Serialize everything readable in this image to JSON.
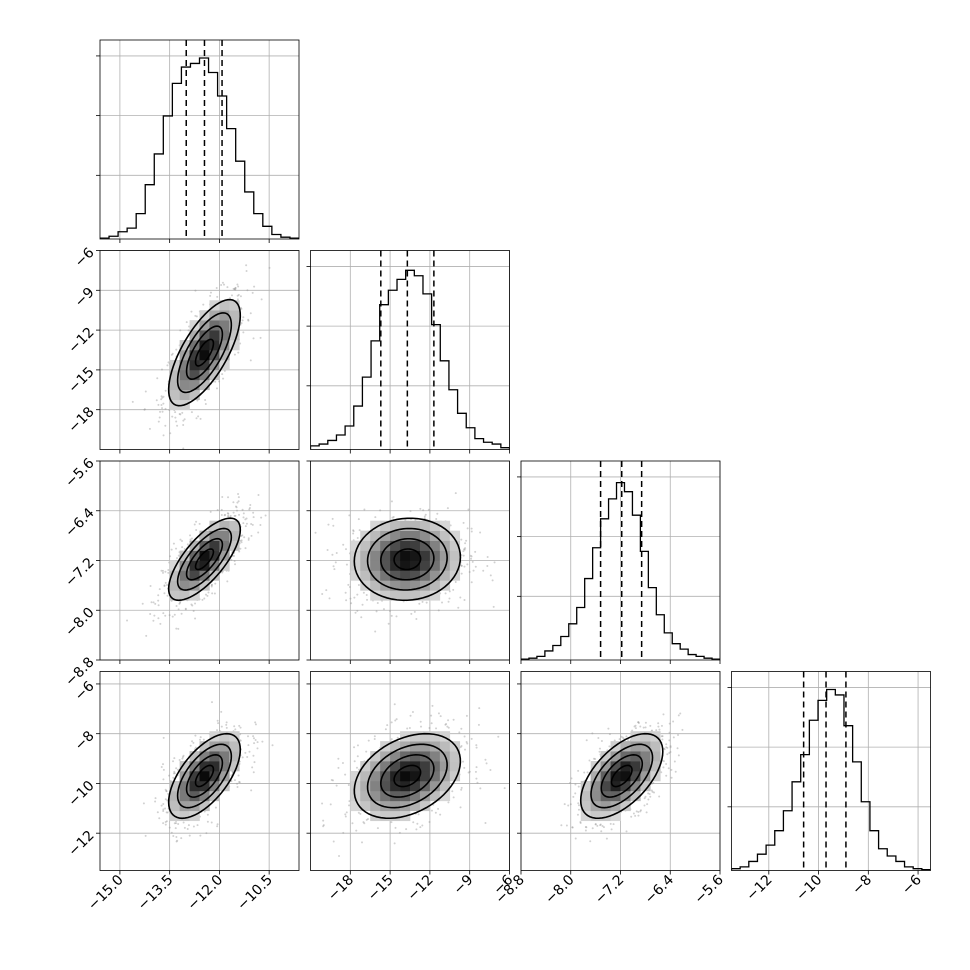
{
  "chart_data": {
    "type": "corner",
    "description_of_panels": "4x4 lower-triangular corner plot; diagonal = 1D histograms with 16/50/84 percentile dashed lines; off-diagonal = 2D density (scatter points, shaded histogram, 4 contour levels)",
    "grid": true,
    "parameters": [
      {
        "range": [
          -15.6,
          -9.6
        ],
        "ticks": [
          -15.0,
          -13.5,
          -12.0,
          -10.5
        ],
        "tick_labels": [
          "−15.0",
          "−13.5",
          "−12.0",
          "−10.5"
        ],
        "quantiles": [
          -13.0,
          -12.45,
          -11.92
        ],
        "hist": [
          0.005,
          0.015,
          0.04,
          0.06,
          0.14,
          0.3,
          0.47,
          0.68,
          0.86,
          0.95,
          0.97,
          1.0,
          0.92,
          0.79,
          0.61,
          0.43,
          0.26,
          0.14,
          0.07,
          0.025,
          0.01,
          0.005
        ]
      },
      {
        "range": [
          -21.0,
          -6.0
        ],
        "ticks": [
          -18,
          -15,
          -12,
          -9,
          -6
        ],
        "tick_labels": [
          "−18",
          "−15",
          "−12",
          "−9",
          "−6"
        ],
        "quantiles": [
          -15.7,
          -13.7,
          -11.7
        ],
        "hist": [
          0.02,
          0.03,
          0.05,
          0.08,
          0.13,
          0.24,
          0.4,
          0.6,
          0.8,
          0.88,
          0.94,
          0.99,
          0.96,
          0.86,
          0.69,
          0.49,
          0.33,
          0.2,
          0.12,
          0.06,
          0.04,
          0.03,
          0.01
        ]
      },
      {
        "range": [
          -8.8,
          -5.6
        ],
        "ticks": [
          -8.8,
          -8.0,
          -7.2,
          -6.4,
          -5.6
        ],
        "tick_labels": [
          "−8.8",
          "−8.0",
          "−7.2",
          "−6.4",
          "−5.6"
        ],
        "quantiles": [
          -7.52,
          -7.18,
          -6.86
        ],
        "hist": [
          0.005,
          0.01,
          0.02,
          0.05,
          0.08,
          0.13,
          0.2,
          0.29,
          0.45,
          0.62,
          0.78,
          0.89,
          0.98,
          0.93,
          0.8,
          0.6,
          0.4,
          0.25,
          0.15,
          0.09,
          0.06,
          0.03,
          0.02,
          0.01,
          0.005
        ]
      },
      {
        "range": [
          -13.5,
          -5.5
        ],
        "ticks": [
          -12,
          -10,
          -8,
          -6
        ],
        "tick_labels": [
          "−12",
          "−10",
          "−8",
          "−6"
        ],
        "quantiles": [
          -10.6,
          -9.7,
          -8.9
        ],
        "hist": [
          0.01,
          0.02,
          0.05,
          0.09,
          0.14,
          0.22,
          0.33,
          0.49,
          0.64,
          0.83,
          0.94,
          1.0,
          0.97,
          0.8,
          0.6,
          0.38,
          0.22,
          0.12,
          0.08,
          0.05,
          0.02,
          0.01,
          0.005
        ]
      }
    ],
    "pairs": [
      {
        "x": 0,
        "y": 1,
        "correlation": 0.7
      },
      {
        "x": 0,
        "y": 2,
        "correlation": 0.72
      },
      {
        "x": 1,
        "y": 2,
        "correlation": 0.05
      },
      {
        "x": 0,
        "y": 3,
        "correlation": 0.62
      },
      {
        "x": 1,
        "y": 3,
        "correlation": 0.35
      },
      {
        "x": 2,
        "y": 3,
        "correlation": 0.58
      }
    ],
    "contour_levels_sigma": [
      0.5,
      1.0,
      1.5,
      2.0
    ]
  }
}
